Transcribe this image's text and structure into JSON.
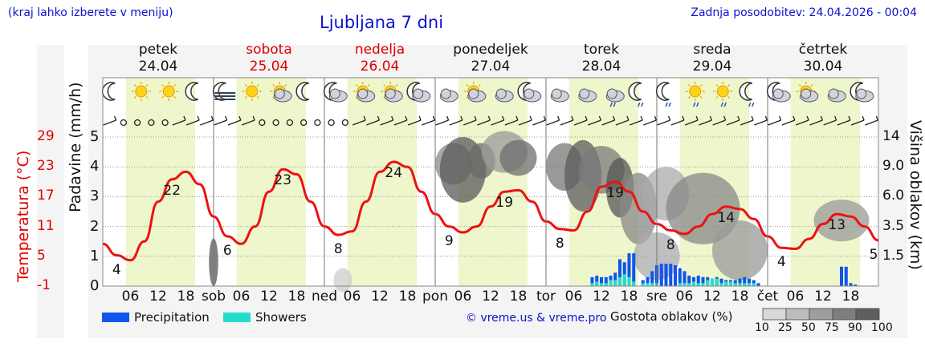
{
  "header": {
    "location_hint": "(kraj lahko izberete v meniju)",
    "title": "Ljubljana 7 dni",
    "updated": "Zadnja posodobitev: 24.04.2026 - 00:04"
  },
  "days": [
    {
      "name": "petek",
      "date": "24.04",
      "weekend": false
    },
    {
      "name": "sobota",
      "date": "25.04",
      "weekend": true
    },
    {
      "name": "nedelja",
      "date": "26.04",
      "weekend": true
    },
    {
      "name": "ponedeljek",
      "date": "27.04",
      "weekend": false
    },
    {
      "name": "torek",
      "date": "28.04",
      "weekend": false
    },
    {
      "name": "sreda",
      "date": "29.04",
      "weekend": false
    },
    {
      "name": "četrtek",
      "date": "30.04",
      "weekend": false
    }
  ],
  "x_ticks": {
    "hours": [
      "06",
      "12",
      "18"
    ],
    "day_abbr": [
      "sob",
      "ned",
      "pon",
      "tor",
      "sre",
      "čet"
    ]
  },
  "axes": {
    "left_title": "Padavine (mm/h)",
    "left_ticks": [
      "0",
      "1",
      "2",
      "3",
      "4",
      "5"
    ],
    "temp_title": "Temperatura (°C)",
    "temp_ticks": [
      "-1",
      "5",
      "11",
      "17",
      "23",
      "29"
    ],
    "right_title": "Višina oblakov (km)",
    "right_ticks": [
      "1.5",
      "3.5",
      "6.0",
      "9.0",
      "14"
    ]
  },
  "icons": [
    "moon-icon",
    "sun-icon",
    "sun-icon",
    "moon-icon",
    "fog-moon-icon",
    "sun-icon",
    "sun-cloud-icon",
    "moon-icon",
    "moon-cloud-icon",
    "sun-cloud-icon",
    "sun-cloud-icon",
    "moon-cloud-icon",
    "cloud-icon",
    "sun-cloud-icon",
    "cloud-icon",
    "moon-cloud-icon",
    "cloud-icon",
    "cloud-icon",
    "rain-cloud-icon",
    "rain-moon-icon",
    "rain-moon-icon",
    "rain-sun-icon",
    "rain-sun-icon",
    "rain-moon-icon",
    "moon-cloud-icon",
    "sun-cloud-icon",
    "cloud-icon",
    "moon-cloud-icon"
  ],
  "legend": {
    "precip_label": "Precipitation",
    "showers_label": "Showers",
    "credit": "© vreme.us & vreme.pro",
    "cloud_density_label": "Gostota oblakov (%)",
    "cloud_scale": [
      "10",
      "25",
      "50",
      "75",
      "90",
      "100"
    ]
  },
  "colors": {
    "temperature": "#ee1111",
    "precipitation": "#1155ee",
    "showers": "#22ddcc",
    "daytime_band": "#eef6cc",
    "title": "#1010d0"
  },
  "chart_data": {
    "type": "line",
    "title": "Ljubljana 7 dni",
    "xlabel": "",
    "ylabel": "Padavine (mm/h)",
    "y2label": "Temperatura (°C)",
    "y3label": "Višina oblakov (km)",
    "ylim": [
      0,
      5
    ],
    "temp_lim": [
      -1,
      29
    ],
    "x_unit": "hours from 24.04 00:00",
    "series": [
      {
        "name": "Temperatura",
        "x": [
          0,
          3,
          6,
          9,
          12,
          15,
          18,
          21,
          24,
          27,
          30,
          33,
          36,
          39,
          42,
          45,
          48,
          51,
          54,
          57,
          60,
          63,
          66,
          69,
          72,
          75,
          78,
          81,
          84,
          87,
          90,
          93,
          96,
          99,
          102,
          105,
          108,
          111,
          114,
          117,
          120,
          123,
          126,
          129,
          132,
          135,
          138,
          141,
          144,
          147,
          150,
          153,
          156,
          159,
          162,
          165,
          168
        ],
        "values": [
          7.5,
          5.2,
          4.2,
          8,
          16,
          20.5,
          22,
          19.5,
          13,
          9,
          7.5,
          11,
          18,
          22.5,
          21.5,
          16,
          11,
          9.3,
          10,
          16,
          22,
          24,
          23,
          18,
          13.5,
          11,
          9.8,
          11,
          15,
          18,
          18.3,
          16,
          12,
          10.5,
          10.2,
          14,
          19,
          20,
          18,
          14,
          11.5,
          10.2,
          9.5,
          11,
          13.5,
          15,
          14.5,
          12.5,
          9,
          6.7,
          6.5,
          8.5,
          11.5,
          13.5,
          13,
          11,
          8.2
        ]
      },
      {
        "name": "Precipitation",
        "x": [
          106,
          107,
          108,
          109,
          110,
          111,
          112,
          113,
          114,
          115,
          116,
          117,
          118,
          119,
          120,
          121,
          122,
          123,
          124,
          125,
          126,
          127,
          128,
          129,
          130,
          131,
          132,
          133,
          134,
          135,
          136,
          137,
          138,
          139,
          140,
          141,
          142,
          160,
          161,
          162,
          163
        ],
        "values": [
          0.3,
          0.35,
          0.3,
          0.3,
          0.35,
          0.45,
          0.9,
          0.8,
          1.1,
          1.1,
          0,
          0.2,
          0.3,
          0.5,
          0.7,
          0.75,
          0.75,
          0.75,
          0.7,
          0.6,
          0.5,
          0.35,
          0.3,
          0.35,
          0.3,
          0.3,
          0.25,
          0.3,
          0.25,
          0.2,
          0.2,
          0.2,
          0.25,
          0.3,
          0.25,
          0.2,
          0.1,
          0.65,
          0.65,
          0.1,
          0.05
        ]
      },
      {
        "name": "Showers",
        "x": [
          106,
          107,
          108,
          109,
          110,
          111,
          112,
          113,
          114,
          115,
          117,
          118,
          119,
          120,
          125,
          126,
          127,
          128,
          129,
          130,
          131,
          132,
          133,
          134,
          135,
          136,
          137,
          138,
          139,
          140,
          141
        ],
        "values": [
          0.1,
          0.15,
          0.1,
          0.1,
          0.2,
          0.2,
          0.3,
          0.4,
          0.3,
          0.15,
          0.1,
          0.1,
          0.1,
          0.1,
          0.1,
          0.1,
          0.1,
          0.15,
          0.1,
          0.1,
          0.2,
          0.25,
          0.25,
          0.1,
          0.15,
          0.15,
          0.1,
          0.1,
          0.1,
          0.1,
          0.1
        ]
      }
    ],
    "temperature_labels": [
      {
        "x": 3,
        "value": "4"
      },
      {
        "x": 15,
        "value": "22"
      },
      {
        "x": 27,
        "value": "6"
      },
      {
        "x": 39,
        "value": "23"
      },
      {
        "x": 51,
        "value": "8"
      },
      {
        "x": 63,
        "value": "24"
      },
      {
        "x": 75,
        "value": "9"
      },
      {
        "x": 87,
        "value": "19"
      },
      {
        "x": 99,
        "value": "8"
      },
      {
        "x": 111,
        "value": "19"
      },
      {
        "x": 123,
        "value": "8"
      },
      {
        "x": 135,
        "value": "14"
      },
      {
        "x": 147,
        "value": "4"
      },
      {
        "x": 159,
        "value": "13"
      },
      {
        "x": 168,
        "value": "5"
      }
    ]
  }
}
